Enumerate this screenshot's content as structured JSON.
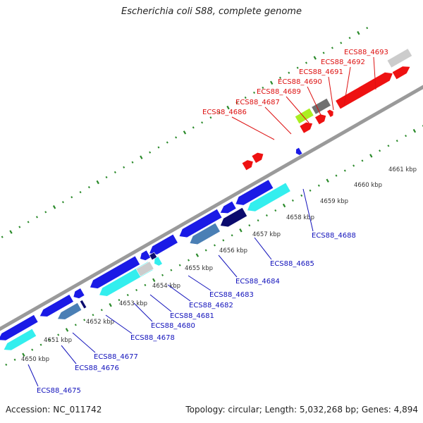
{
  "title": "Escherichia coli S88, complete genome",
  "footer": {
    "accession": "Accession: NC_011742",
    "summary": "Topology: circular; Length: 5,032,268 bp; Genes: 4,894"
  },
  "colors": {
    "backbone": "#9a9a9a",
    "tick": "#2a8a2a",
    "forward_label": "#dd1111",
    "reverse_label": "#1111bb",
    "blue": "#1a1ae6",
    "cyan": "#33eeee",
    "steel": "#4a7fb5",
    "navy": "#0b0b6e",
    "red": "#ee1111",
    "lime": "#aaee22",
    "gray": "#707070",
    "light_gray": "#cccccc"
  },
  "kbp_ticks": [
    "4650 kbp",
    "4651 kbp",
    "4652 kbp",
    "4653 kbp",
    "4654 kbp",
    "4655 kbp",
    "4656 kbp",
    "4657 kbp",
    "4658 kbp",
    "4659 kbp",
    "4660 kbp",
    "4661 kbp"
  ],
  "forward_labels": [
    "ECS88_4686",
    "ECS88_4687",
    "ECS88_4689",
    "ECS88_4690",
    "ECS88_4691",
    "ECS88_4692",
    "ECS88_4693"
  ],
  "reverse_labels": [
    "ECS88_4675",
    "ECS88_4676",
    "ECS88_4677",
    "ECS88_4678",
    "ECS88_4680",
    "ECS88_4681",
    "ECS88_4682",
    "ECS88_4683",
    "ECS88_4684",
    "ECS88_4685",
    "ECS88_4688"
  ]
}
